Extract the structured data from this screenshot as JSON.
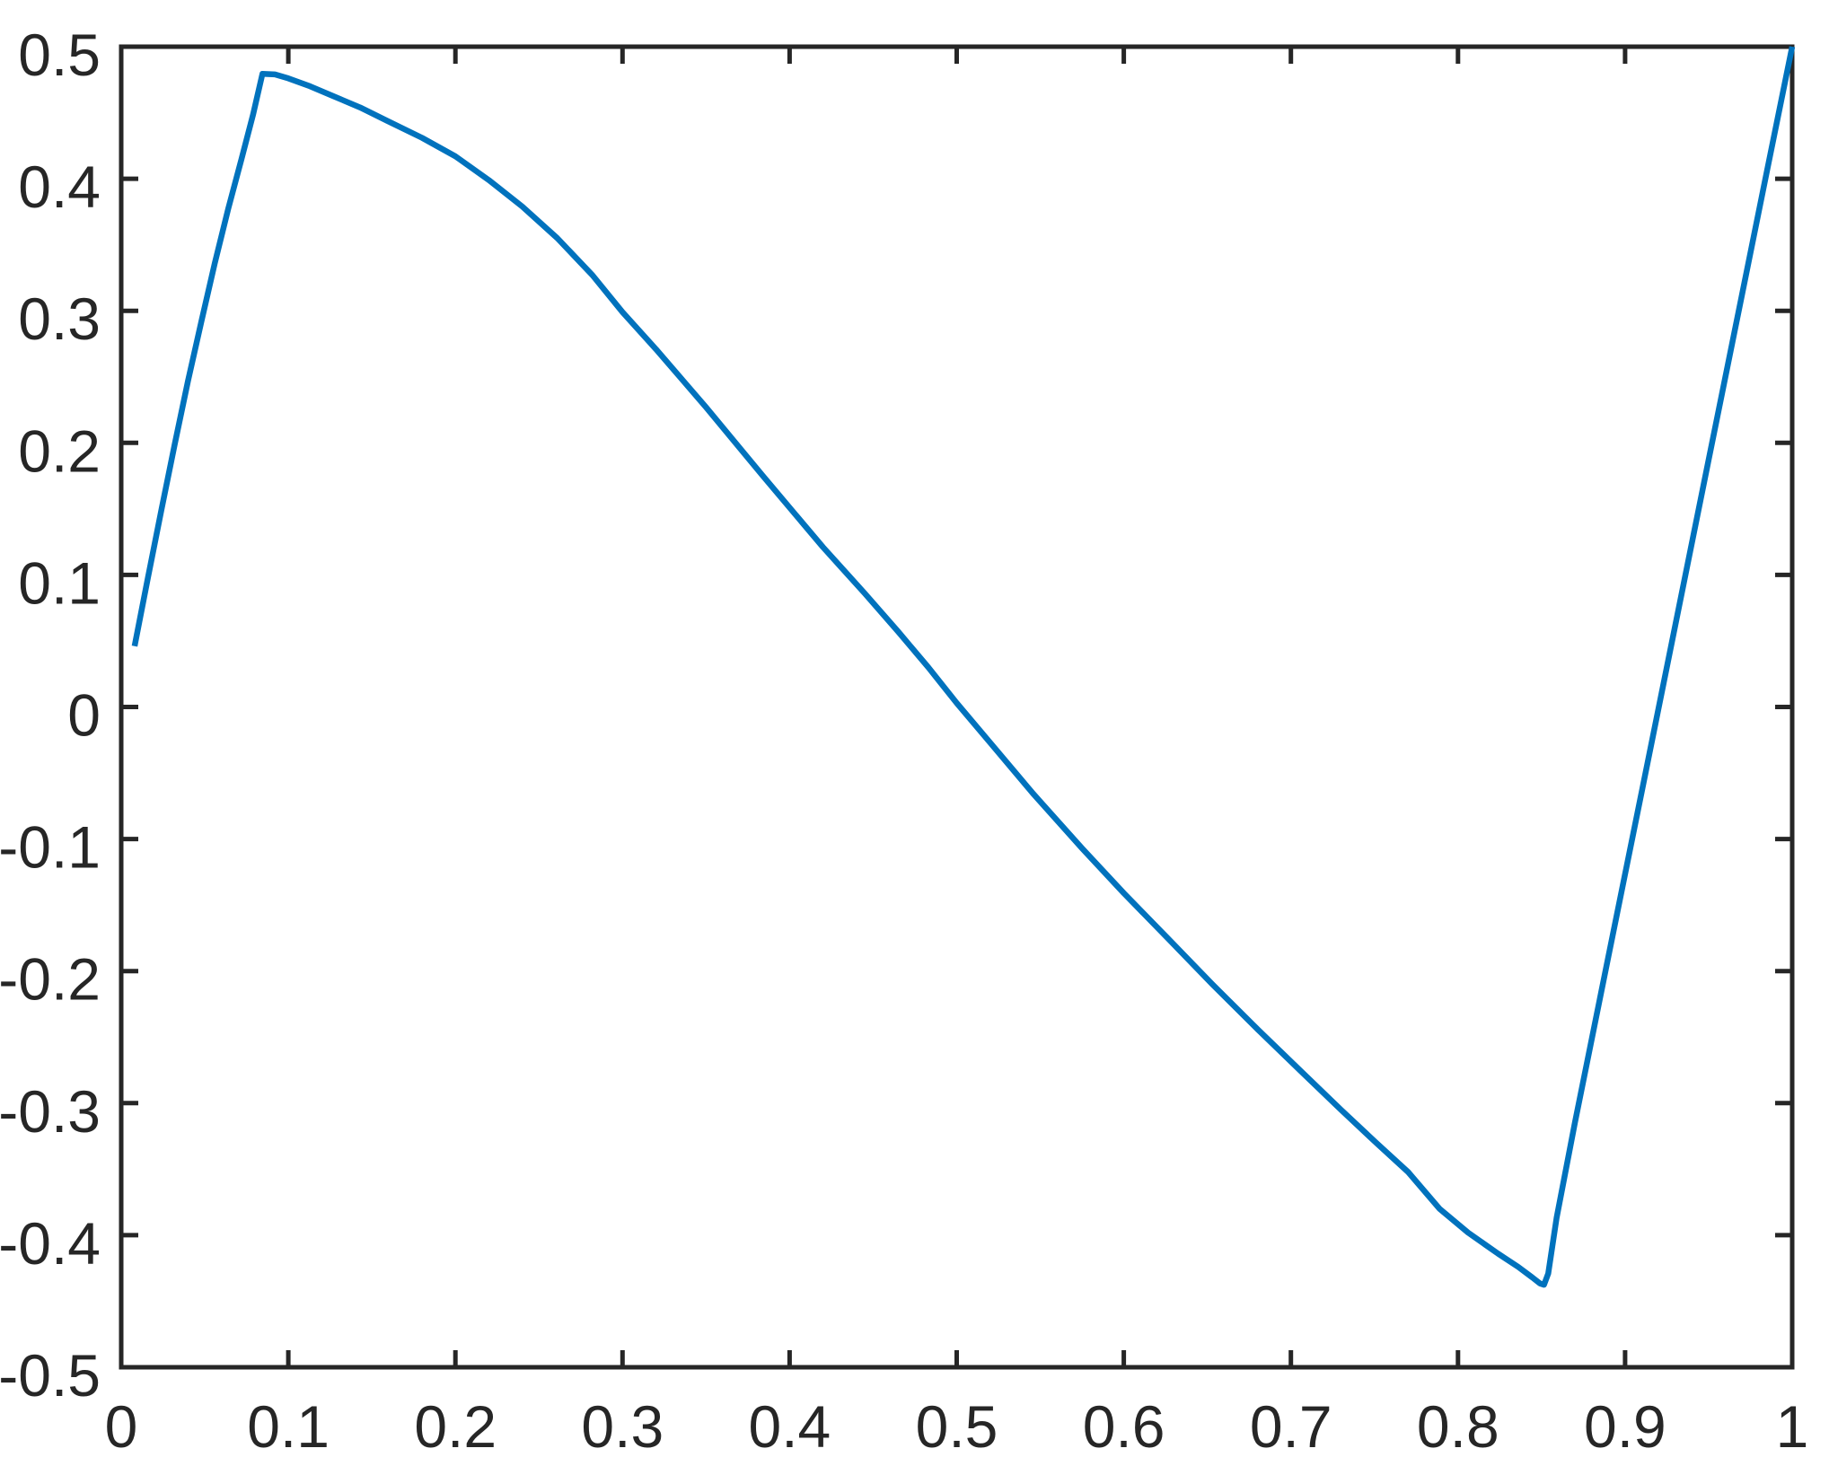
{
  "figure": {
    "background_color": "#ffffff"
  },
  "chart_data": {
    "type": "line",
    "title": "",
    "xlabel": "",
    "ylabel": "",
    "xlim": [
      0,
      1
    ],
    "ylim": [
      -0.5,
      0.5
    ],
    "grid": false,
    "legend": "none",
    "box": true,
    "tick_direction": "in",
    "axis_color": "#262626",
    "tick_label_color": "#262626",
    "x_ticks": {
      "values": [
        0,
        0.1,
        0.2,
        0.3,
        0.4,
        0.5,
        0.6,
        0.7,
        0.8,
        0.9,
        1
      ],
      "labels": [
        "0",
        "0.1",
        "0.2",
        "0.3",
        "0.4",
        "0.5",
        "0.6",
        "0.7",
        "0.8",
        "0.9",
        "1"
      ]
    },
    "y_ticks": {
      "values": [
        -0.5,
        -0.4,
        -0.3,
        -0.2,
        -0.1,
        0,
        0.1,
        0.2,
        0.3,
        0.4,
        0.5
      ],
      "labels": [
        "-0.5",
        "-0.4",
        "-0.3",
        "-0.2",
        "-0.1",
        "0",
        "0.1",
        "0.2",
        "0.3",
        "0.4",
        "0.5"
      ]
    },
    "notable_points": {
      "start": [
        0.008,
        0.046
      ],
      "peak": [
        0.0845,
        0.48
      ],
      "zero_crossing_x": 0.5,
      "minimum": [
        0.847,
        -0.437
      ],
      "end": [
        1.0,
        0.5
      ]
    },
    "series": [
      {
        "color": "#0072BD",
        "points": [
          [
            0.008,
            0.046
          ],
          [
            0.016,
            0.098
          ],
          [
            0.024,
            0.149
          ],
          [
            0.032,
            0.199
          ],
          [
            0.04,
            0.247
          ],
          [
            0.048,
            0.292
          ],
          [
            0.056,
            0.336
          ],
          [
            0.064,
            0.377
          ],
          [
            0.072,
            0.415
          ],
          [
            0.079,
            0.449
          ],
          [
            0.0845,
            0.4795
          ],
          [
            0.092,
            0.479
          ],
          [
            0.1,
            0.476
          ],
          [
            0.113,
            0.47
          ],
          [
            0.126,
            0.463
          ],
          [
            0.143,
            0.454
          ],
          [
            0.159,
            0.444
          ],
          [
            0.18,
            0.431
          ],
          [
            0.2,
            0.417
          ],
          [
            0.22,
            0.399
          ],
          [
            0.24,
            0.379
          ],
          [
            0.261,
            0.355
          ],
          [
            0.282,
            0.327
          ],
          [
            0.3,
            0.299
          ],
          [
            0.32,
            0.271
          ],
          [
            0.35,
            0.227
          ],
          [
            0.384,
            0.175
          ],
          [
            0.42,
            0.121
          ],
          [
            0.445,
            0.086
          ],
          [
            0.465,
            0.057
          ],
          [
            0.483,
            0.03
          ],
          [
            0.5,
            0.003
          ],
          [
            0.52,
            -0.027
          ],
          [
            0.546,
            -0.066
          ],
          [
            0.575,
            -0.107
          ],
          [
            0.6,
            -0.141
          ],
          [
            0.627,
            -0.176
          ],
          [
            0.653,
            -0.21
          ],
          [
            0.68,
            -0.244
          ],
          [
            0.707,
            -0.277
          ],
          [
            0.73,
            -0.305
          ],
          [
            0.751,
            -0.33
          ],
          [
            0.77,
            -0.352
          ],
          [
            0.789,
            -0.38
          ],
          [
            0.806,
            -0.398
          ],
          [
            0.824,
            -0.414
          ],
          [
            0.836,
            -0.424
          ],
          [
            0.8445,
            -0.432
          ],
          [
            0.849,
            -0.4365
          ],
          [
            0.8515,
            -0.4375
          ],
          [
            0.854,
            -0.429
          ],
          [
            0.859,
            -0.387
          ],
          [
            0.87,
            -0.3145
          ],
          [
            0.89,
            -0.189
          ],
          [
            0.91,
            -0.064
          ],
          [
            0.93,
            0.0615
          ],
          [
            0.95,
            0.187
          ],
          [
            0.97,
            0.3125
          ],
          [
            0.985,
            0.4065
          ],
          [
            1.0,
            0.5
          ]
        ]
      }
    ]
  }
}
